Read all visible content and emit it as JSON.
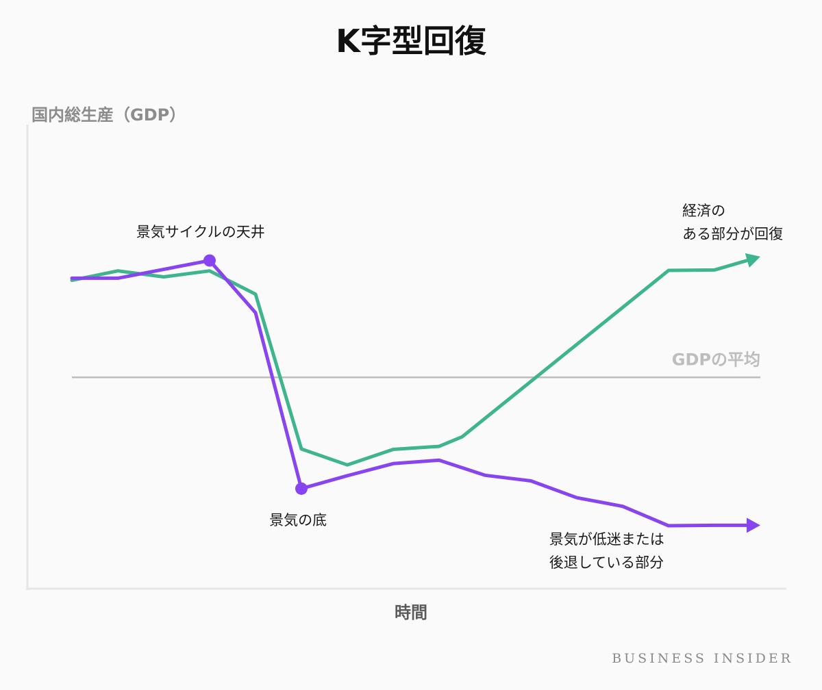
{
  "chart_data": {
    "type": "line",
    "title": "K字型回復",
    "ylabel": "国内総生産（GDP）",
    "xlabel": "時間",
    "grid": false,
    "legend": "none",
    "ylim": [
      0,
      100
    ],
    "xlim": [
      0,
      15.5
    ],
    "series": [
      {
        "color": "#3fb58f",
        "arrow_end": true,
        "x": [
          0,
          1,
          2,
          3,
          4,
          5,
          6,
          7,
          8,
          8.5,
          13,
          14,
          15
        ],
        "y": [
          71.5,
          73.7,
          72.3,
          73.7,
          68.3,
          32.4,
          28.7,
          32.3,
          33.0,
          35.2,
          73.8,
          73.9,
          77.0
        ]
      },
      {
        "color": "#8844ee",
        "arrow_end": true,
        "x": [
          0,
          1,
          3,
          4,
          5,
          6,
          7,
          8,
          9,
          10,
          11,
          12,
          13,
          14,
          15
        ],
        "y": [
          72.0,
          72.0,
          76.1,
          64.0,
          23.2,
          26.2,
          29.0,
          29.8,
          26.3,
          25.0,
          21.1,
          19.1,
          14.6,
          14.7,
          14.7
        ]
      }
    ],
    "reference_line": {
      "y": 49.0,
      "label": "GDPの平均",
      "color": "#bdbdbd"
    },
    "markers": [
      {
        "series": 1,
        "x": 3,
        "y": 76.1
      },
      {
        "series": 1,
        "x": 5,
        "y": 23.2
      }
    ],
    "annotations": [
      {
        "text": [
          "景気サイクルの天井"
        ],
        "x": 1.4,
        "y": 81.6
      },
      {
        "text": [
          "景気の底"
        ],
        "x": 4.3,
        "y": 14.8
      },
      {
        "text": [
          "経済の",
          "ある部分が回復"
        ],
        "x": 13.3,
        "y": 86.5
      },
      {
        "text": [
          "景気が低迷または",
          "後退している部分"
        ],
        "x": 10.4,
        "y": 10.3
      }
    ]
  },
  "credit": "BUSINESS INSIDER"
}
